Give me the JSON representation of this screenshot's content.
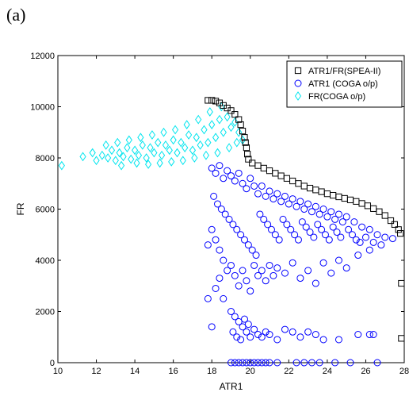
{
  "panel_label": "(a)",
  "chart_data": {
    "type": "scatter",
    "title": "",
    "xlabel": "ATR1",
    "ylabel": "FR",
    "xlim": [
      10,
      28
    ],
    "ylim": [
      0,
      12000
    ],
    "xticks": [
      10,
      12,
      14,
      16,
      18,
      20,
      22,
      24,
      26,
      28
    ],
    "xtick_labels": [
      "10",
      "12",
      "14",
      "16",
      "18",
      "20",
      "22",
      "24",
      "26",
      "28"
    ],
    "yticks": [
      0,
      2000,
      4000,
      6000,
      8000,
      10000,
      12000
    ],
    "ytick_labels": [
      "0",
      "2000",
      "4000",
      "6000",
      "8000",
      "10000",
      "12000"
    ],
    "grid": false,
    "legend_position": "top-right",
    "series": [
      {
        "name": "ATR1/FR(SPEA-II)",
        "marker": "square",
        "color": "#000000",
        "points": [
          [
            17.8,
            10250
          ],
          [
            18.0,
            10250
          ],
          [
            18.2,
            10220
          ],
          [
            18.4,
            10150
          ],
          [
            18.6,
            10050
          ],
          [
            18.8,
            9950
          ],
          [
            19.0,
            9850
          ],
          [
            19.2,
            9700
          ],
          [
            19.4,
            9500
          ],
          [
            19.5,
            9300
          ],
          [
            19.6,
            9050
          ],
          [
            19.7,
            8800
          ],
          [
            19.75,
            8600
          ],
          [
            19.8,
            8400
          ],
          [
            19.85,
            8150
          ],
          [
            19.9,
            7950
          ],
          [
            20.1,
            7800
          ],
          [
            20.4,
            7700
          ],
          [
            20.7,
            7600
          ],
          [
            21.0,
            7500
          ],
          [
            21.3,
            7400
          ],
          [
            21.6,
            7300
          ],
          [
            21.9,
            7200
          ],
          [
            22.2,
            7100
          ],
          [
            22.5,
            7000
          ],
          [
            22.8,
            6900
          ],
          [
            23.1,
            6820
          ],
          [
            23.4,
            6750
          ],
          [
            23.7,
            6680
          ],
          [
            24.0,
            6600
          ],
          [
            24.3,
            6540
          ],
          [
            24.6,
            6480
          ],
          [
            24.9,
            6420
          ],
          [
            25.2,
            6360
          ],
          [
            25.5,
            6300
          ],
          [
            25.8,
            6220
          ],
          [
            26.1,
            6130
          ],
          [
            26.4,
            6020
          ],
          [
            26.7,
            5900
          ],
          [
            27.0,
            5750
          ],
          [
            27.3,
            5550
          ],
          [
            27.5,
            5400
          ],
          [
            27.7,
            5200
          ],
          [
            27.8,
            5050
          ],
          [
            27.85,
            3100
          ],
          [
            27.85,
            950
          ]
        ]
      },
      {
        "name": "ATR1 (COGA o/p)",
        "marker": "circle",
        "color": "#0000ff",
        "points": [
          [
            18.0,
            7600
          ],
          [
            18.2,
            7400
          ],
          [
            18.4,
            7700
          ],
          [
            18.6,
            7200
          ],
          [
            18.8,
            7500
          ],
          [
            19.0,
            7300
          ],
          [
            19.2,
            7100
          ],
          [
            19.4,
            7400
          ],
          [
            19.6,
            7000
          ],
          [
            19.8,
            6800
          ],
          [
            20.0,
            7200
          ],
          [
            20.2,
            6900
          ],
          [
            20.4,
            6600
          ],
          [
            20.6,
            6900
          ],
          [
            20.8,
            6500
          ],
          [
            21.0,
            6700
          ],
          [
            21.2,
            6400
          ],
          [
            21.4,
            6600
          ],
          [
            21.6,
            6300
          ],
          [
            21.8,
            6500
          ],
          [
            22.0,
            6200
          ],
          [
            22.2,
            6400
          ],
          [
            22.4,
            6100
          ],
          [
            22.6,
            6300
          ],
          [
            22.8,
            6000
          ],
          [
            23.0,
            6200
          ],
          [
            23.2,
            5900
          ],
          [
            23.4,
            6100
          ],
          [
            23.6,
            5800
          ],
          [
            23.8,
            6000
          ],
          [
            24.0,
            5700
          ],
          [
            24.2,
            5900
          ],
          [
            24.4,
            5600
          ],
          [
            24.6,
            5800
          ],
          [
            24.8,
            5500
          ],
          [
            25.0,
            5700
          ],
          [
            25.4,
            5500
          ],
          [
            25.8,
            5300
          ],
          [
            26.2,
            5200
          ],
          [
            26.6,
            5000
          ],
          [
            27.0,
            4900
          ],
          [
            27.4,
            4850
          ],
          [
            18.1,
            6500
          ],
          [
            18.3,
            6200
          ],
          [
            18.5,
            6000
          ],
          [
            18.7,
            5800
          ],
          [
            18.9,
            5600
          ],
          [
            19.1,
            5400
          ],
          [
            19.3,
            5200
          ],
          [
            19.5,
            5000
          ],
          [
            19.7,
            4800
          ],
          [
            19.9,
            4600
          ],
          [
            20.1,
            4400
          ],
          [
            20.3,
            4200
          ],
          [
            20.5,
            5800
          ],
          [
            20.7,
            5600
          ],
          [
            20.9,
            5400
          ],
          [
            21.1,
            5200
          ],
          [
            21.3,
            5000
          ],
          [
            21.5,
            4800
          ],
          [
            21.7,
            5600
          ],
          [
            21.9,
            5400
          ],
          [
            22.1,
            5200
          ],
          [
            22.3,
            5000
          ],
          [
            22.5,
            4800
          ],
          [
            22.7,
            5500
          ],
          [
            22.9,
            5300
          ],
          [
            23.1,
            5100
          ],
          [
            23.3,
            4900
          ],
          [
            23.5,
            5400
          ],
          [
            23.7,
            5200
          ],
          [
            23.9,
            5000
          ],
          [
            24.1,
            4800
          ],
          [
            24.3,
            5300
          ],
          [
            24.5,
            5100
          ],
          [
            24.7,
            4900
          ],
          [
            25.1,
            5200
          ],
          [
            25.3,
            5000
          ],
          [
            25.5,
            4800
          ],
          [
            25.7,
            4700
          ],
          [
            26.0,
            4900
          ],
          [
            26.4,
            4700
          ],
          [
            26.8,
            4600
          ],
          [
            17.8,
            4600
          ],
          [
            18.0,
            5200
          ],
          [
            18.2,
            4800
          ],
          [
            18.4,
            4400
          ],
          [
            18.6,
            4000
          ],
          [
            18.8,
            3600
          ],
          [
            19.0,
            3800
          ],
          [
            19.2,
            3400
          ],
          [
            19.4,
            3000
          ],
          [
            19.6,
            3600
          ],
          [
            19.8,
            3200
          ],
          [
            20.0,
            2800
          ],
          [
            20.2,
            3800
          ],
          [
            20.4,
            3400
          ],
          [
            20.6,
            3600
          ],
          [
            20.8,
            3200
          ],
          [
            21.0,
            3800
          ],
          [
            21.2,
            3400
          ],
          [
            21.4,
            3700
          ],
          [
            21.8,
            3500
          ],
          [
            22.2,
            3900
          ],
          [
            22.6,
            3300
          ],
          [
            23.0,
            3600
          ],
          [
            23.4,
            3100
          ],
          [
            23.8,
            3900
          ],
          [
            24.2,
            3500
          ],
          [
            24.6,
            4000
          ],
          [
            25.0,
            3700
          ],
          [
            25.6,
            4200
          ],
          [
            26.2,
            4400
          ],
          [
            18.2,
            2900
          ],
          [
            18.6,
            2500
          ],
          [
            18.0,
            1400
          ],
          [
            17.8,
            2500
          ],
          [
            18.4,
            3300
          ],
          [
            19.0,
            2000
          ],
          [
            19.2,
            1800
          ],
          [
            19.4,
            1600
          ],
          [
            19.6,
            1400
          ],
          [
            19.8,
            1200
          ],
          [
            20.0,
            1000
          ],
          [
            19.1,
            1200
          ],
          [
            19.3,
            1000
          ],
          [
            19.5,
            900
          ],
          [
            19.7,
            1700
          ],
          [
            19.9,
            1500
          ],
          [
            20.2,
            1300
          ],
          [
            20.4,
            1100
          ],
          [
            20.6,
            1000
          ],
          [
            20.8,
            1200
          ],
          [
            21.0,
            1100
          ],
          [
            21.4,
            900
          ],
          [
            21.8,
            1300
          ],
          [
            22.2,
            1200
          ],
          [
            22.6,
            1000
          ],
          [
            23.0,
            1200
          ],
          [
            23.4,
            1100
          ],
          [
            23.8,
            900
          ],
          [
            24.6,
            900
          ],
          [
            25.6,
            1100
          ],
          [
            26.2,
            1100
          ],
          [
            26.4,
            1100
          ],
          [
            19.0,
            0
          ],
          [
            19.2,
            0
          ],
          [
            19.4,
            0
          ],
          [
            19.6,
            0
          ],
          [
            19.8,
            0
          ],
          [
            20.0,
            0
          ],
          [
            20.2,
            0
          ],
          [
            20.4,
            0
          ],
          [
            20.6,
            0
          ],
          [
            20.8,
            0
          ],
          [
            21.0,
            0
          ],
          [
            21.4,
            0
          ],
          [
            22.4,
            0
          ],
          [
            22.8,
            0
          ],
          [
            23.2,
            0
          ],
          [
            23.6,
            0
          ],
          [
            24.4,
            0
          ],
          [
            25.2,
            0
          ],
          [
            26.6,
            0
          ]
        ]
      },
      {
        "name": "FR(COGA o/p)",
        "marker": "diamond",
        "color": "#00e5ee",
        "points": [
          [
            10.2,
            7700
          ],
          [
            11.3,
            8050
          ],
          [
            11.8,
            8200
          ],
          [
            12.0,
            7900
          ],
          [
            12.3,
            8100
          ],
          [
            12.6,
            8000
          ],
          [
            12.8,
            8300
          ],
          [
            13.0,
            7900
          ],
          [
            13.2,
            8200
          ],
          [
            13.4,
            8050
          ],
          [
            13.6,
            8400
          ],
          [
            13.8,
            7950
          ],
          [
            14.0,
            8300
          ],
          [
            14.2,
            8100
          ],
          [
            14.4,
            8500
          ],
          [
            14.6,
            8000
          ],
          [
            14.8,
            8400
          ],
          [
            15.0,
            8200
          ],
          [
            15.2,
            8600
          ],
          [
            15.4,
            8100
          ],
          [
            15.6,
            8500
          ],
          [
            15.8,
            8300
          ],
          [
            16.0,
            8700
          ],
          [
            16.2,
            8200
          ],
          [
            16.4,
            8600
          ],
          [
            16.6,
            8400
          ],
          [
            16.8,
            8900
          ],
          [
            17.0,
            8300
          ],
          [
            17.2,
            8800
          ],
          [
            17.4,
            8500
          ],
          [
            17.6,
            9100
          ],
          [
            17.8,
            8600
          ],
          [
            18.0,
            9300
          ],
          [
            18.2,
            8800
          ],
          [
            18.4,
            9500
          ],
          [
            18.6,
            9000
          ],
          [
            18.8,
            9600
          ],
          [
            19.0,
            9200
          ],
          [
            19.2,
            9400
          ],
          [
            19.4,
            9000
          ],
          [
            19.6,
            8700
          ],
          [
            12.5,
            8500
          ],
          [
            13.1,
            8600
          ],
          [
            13.7,
            8700
          ],
          [
            14.3,
            8800
          ],
          [
            14.9,
            8900
          ],
          [
            15.5,
            9000
          ],
          [
            16.1,
            9100
          ],
          [
            16.7,
            9300
          ],
          [
            17.3,
            9500
          ],
          [
            17.9,
            9800
          ],
          [
            18.5,
            10000
          ],
          [
            13.3,
            7700
          ],
          [
            14.1,
            7800
          ],
          [
            14.7,
            7750
          ],
          [
            15.3,
            7800
          ],
          [
            15.9,
            7850
          ],
          [
            16.5,
            7900
          ],
          [
            17.1,
            8000
          ],
          [
            17.7,
            8100
          ],
          [
            18.3,
            8200
          ],
          [
            18.9,
            8400
          ],
          [
            19.3,
            8600
          ]
        ]
      }
    ]
  }
}
